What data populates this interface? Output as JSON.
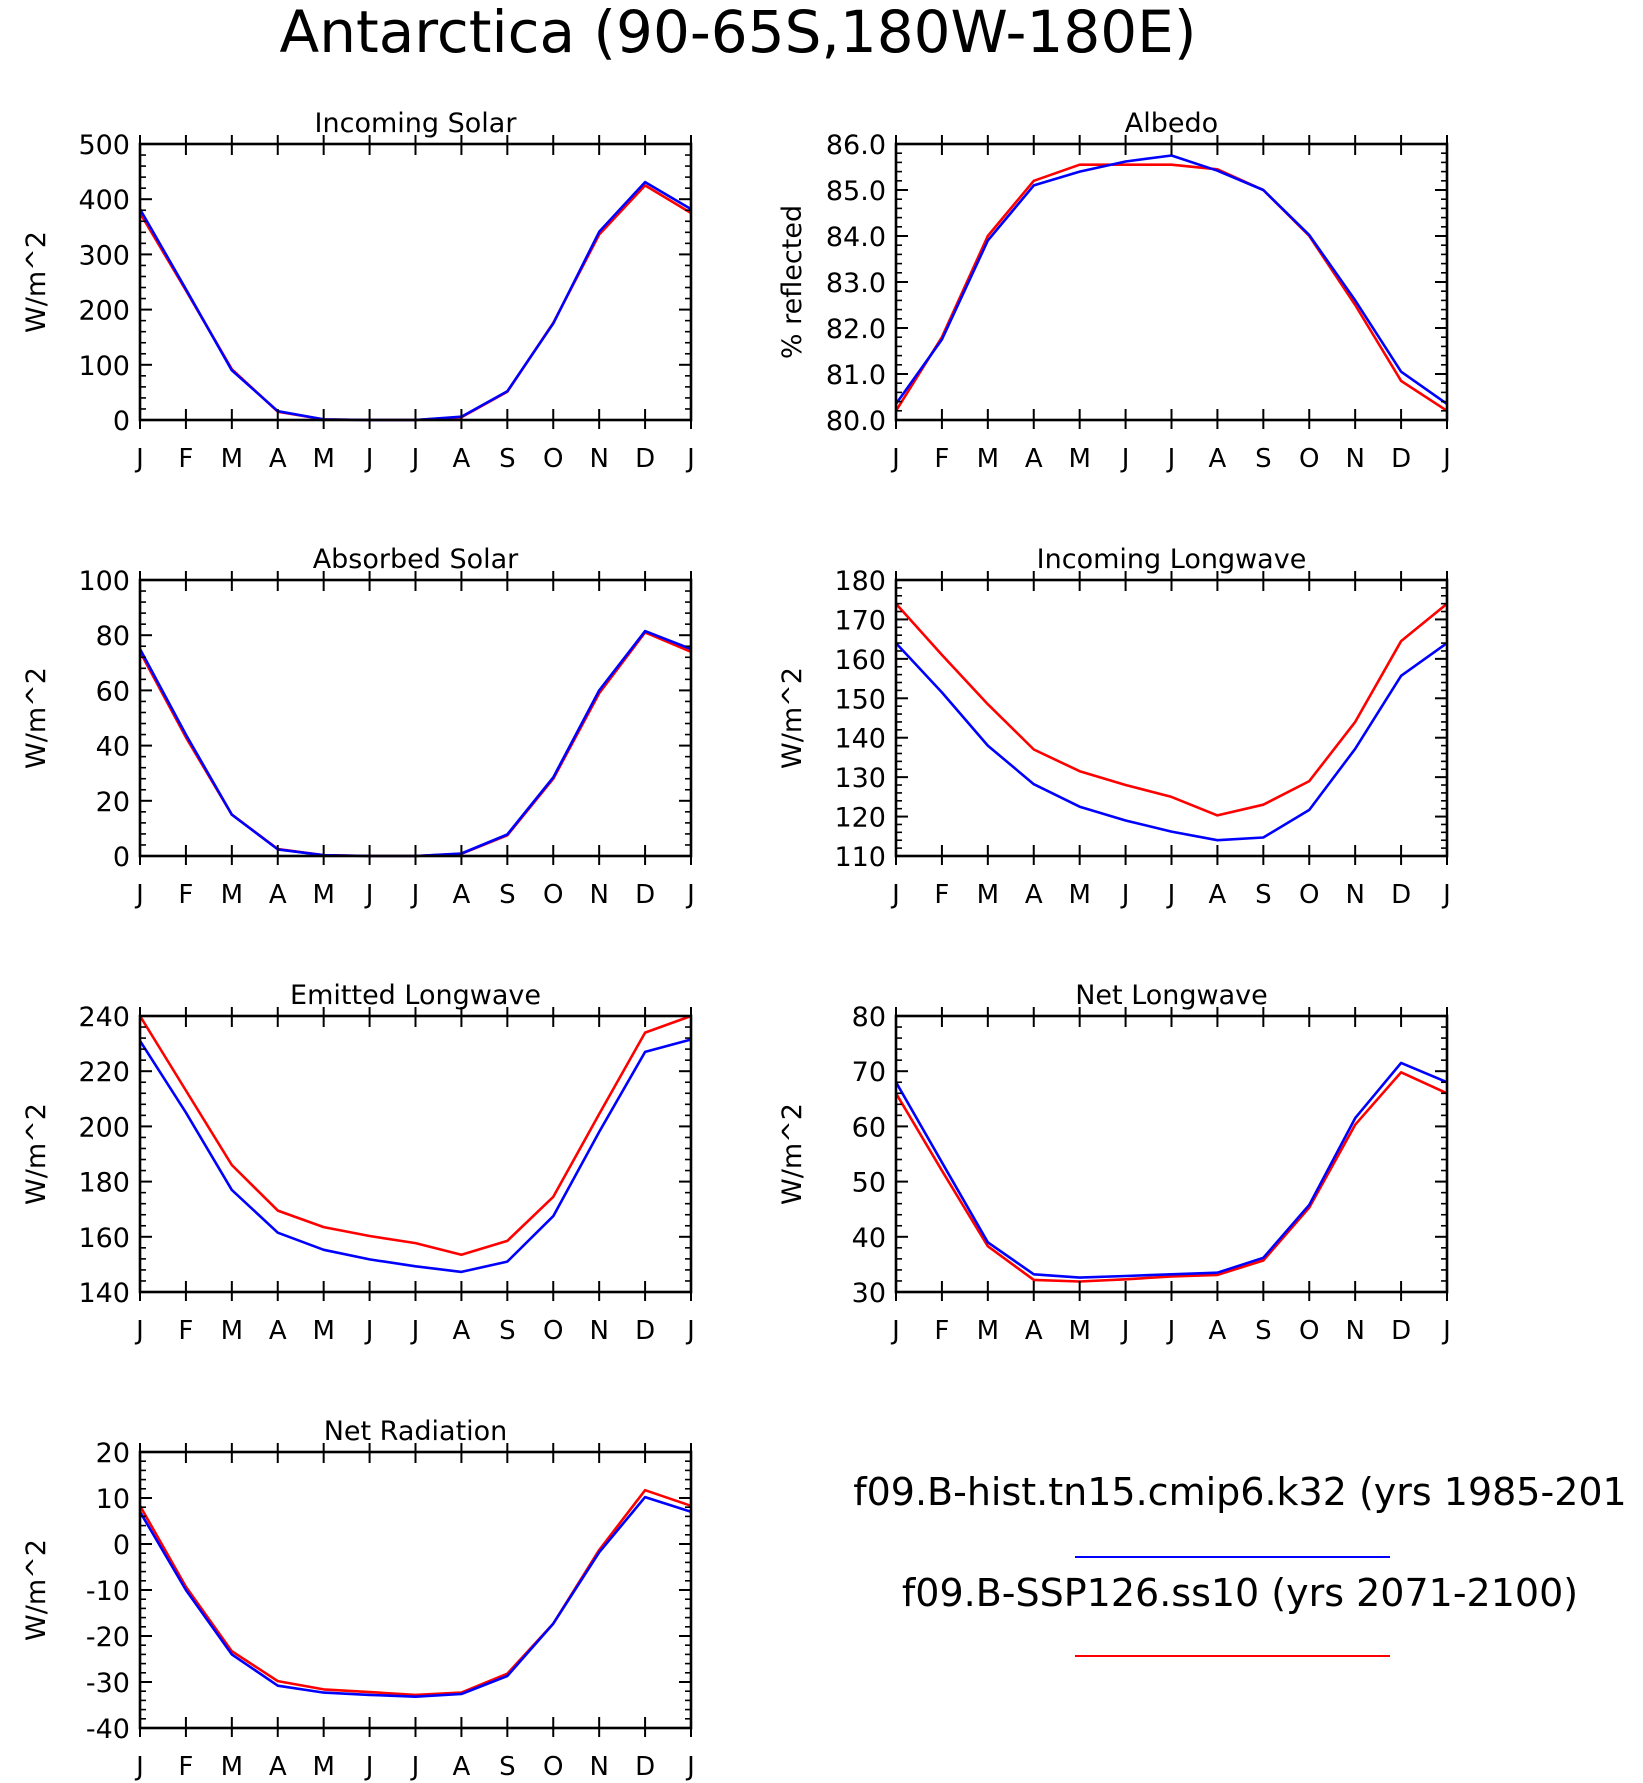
{
  "title": "Antarctica (90-65S,180W-180E)",
  "colors": {
    "case1": "#0000ff",
    "case2": "#ff0000",
    "axis": "#000000"
  },
  "legend": {
    "entries": [
      {
        "label": "f09.B-hist.tn15.cmip6.k32 (yrs 1985-201",
        "color": "#0000ff"
      },
      {
        "label": "f09.B-SSP126.ss10 (yrs 2071-2100)",
        "color": "#ff0000"
      }
    ]
  },
  "chart_data": [
    {
      "type": "line",
      "title": "Incoming Solar",
      "ylabel": "W/m^2",
      "categories": [
        "J",
        "F",
        "M",
        "A",
        "M",
        "J",
        "J",
        "A",
        "S",
        "O",
        "N",
        "D",
        "J"
      ],
      "ylim": [
        0,
        500
      ],
      "yticks": [
        0,
        100,
        200,
        300,
        400,
        500
      ],
      "ytick_labels": [
        "0",
        "100",
        "200",
        "300",
        "400",
        "500"
      ],
      "series": [
        {
          "color": "#ff0000",
          "values": [
            375,
            235,
            92,
            15,
            1,
            0,
            0,
            5,
            51,
            176,
            336,
            425,
            375
          ]
        },
        {
          "color": "#0000ff",
          "values": [
            382,
            237,
            90,
            16,
            1,
            0,
            0,
            6,
            52,
            175,
            341,
            431,
            382
          ]
        }
      ]
    },
    {
      "type": "line",
      "title": "Albedo",
      "ylabel": "% reflected",
      "categories": [
        "J",
        "F",
        "M",
        "A",
        "M",
        "J",
        "J",
        "A",
        "S",
        "O",
        "N",
        "D",
        "J"
      ],
      "ylim": [
        80,
        86
      ],
      "yticks": [
        80,
        81,
        82,
        83,
        84,
        85,
        86
      ],
      "ytick_labels": [
        "80.0",
        "81.0",
        "82.0",
        "83.0",
        "84.0",
        "85.0",
        "86.0"
      ],
      "series": [
        {
          "color": "#ff0000",
          "values": [
            80.2,
            81.8,
            84.0,
            85.2,
            85.55,
            85.55,
            85.55,
            85.45,
            85.0,
            84.0,
            82.5,
            80.85,
            80.2
          ]
        },
        {
          "color": "#0000ff",
          "values": [
            80.35,
            81.75,
            83.9,
            85.1,
            85.4,
            85.62,
            85.75,
            85.42,
            85.0,
            84.02,
            82.6,
            81.05,
            80.35
          ]
        }
      ]
    },
    {
      "type": "line",
      "title": "Absorbed Solar",
      "ylabel": "W/m^2",
      "categories": [
        "J",
        "F",
        "M",
        "A",
        "M",
        "J",
        "J",
        "A",
        "S",
        "O",
        "N",
        "D",
        "J"
      ],
      "ylim": [
        0,
        100
      ],
      "yticks": [
        0,
        20,
        40,
        60,
        80,
        100
      ],
      "ytick_labels": [
        "0",
        "20",
        "40",
        "60",
        "80",
        "100"
      ],
      "series": [
        {
          "color": "#ff0000",
          "values": [
            74,
            43,
            15,
            2.5,
            0.3,
            0,
            0,
            0.8,
            7.5,
            28,
            59,
            81,
            74
          ]
        },
        {
          "color": "#0000ff",
          "values": [
            75,
            44,
            15,
            2.4,
            0.3,
            0,
            0,
            0.9,
            7.8,
            28.5,
            60,
            81.5,
            75
          ]
        }
      ]
    },
    {
      "type": "line",
      "title": "Incoming Longwave",
      "ylabel": "W/m^2",
      "categories": [
        "J",
        "F",
        "M",
        "A",
        "M",
        "J",
        "J",
        "A",
        "S",
        "O",
        "N",
        "D",
        "J"
      ],
      "ylim": [
        110,
        180
      ],
      "yticks": [
        110,
        120,
        130,
        140,
        150,
        160,
        170,
        180
      ],
      "ytick_labels": [
        "110",
        "120",
        "130",
        "140",
        "150",
        "160",
        "170",
        "180"
      ],
      "series": [
        {
          "color": "#ff0000",
          "values": [
            174,
            161,
            148.5,
            137,
            131.5,
            128,
            125,
            120.3,
            123,
            129,
            144,
            164.5,
            174
          ]
        },
        {
          "color": "#0000ff",
          "values": [
            164,
            151.5,
            138,
            128.2,
            122.5,
            119,
            116.2,
            114,
            114.7,
            121.7,
            137.2,
            155.7,
            164
          ]
        }
      ]
    },
    {
      "type": "line",
      "title": "Emitted Longwave",
      "ylabel": "W/m^2",
      "categories": [
        "J",
        "F",
        "M",
        "A",
        "M",
        "J",
        "J",
        "A",
        "S",
        "O",
        "N",
        "D",
        "J"
      ],
      "ylim": [
        140,
        240
      ],
      "yticks": [
        140,
        160,
        180,
        200,
        220,
        240
      ],
      "ytick_labels": [
        "140",
        "160",
        "180",
        "200",
        "220",
        "240"
      ],
      "series": [
        {
          "color": "#ff0000",
          "values": [
            240,
            213,
            186,
            169.5,
            163.5,
            160.3,
            157.7,
            153.5,
            158.5,
            174.5,
            204.5,
            234,
            240
          ]
        },
        {
          "color": "#0000ff",
          "values": [
            231,
            205,
            177,
            161.5,
            155.3,
            151.8,
            149.3,
            147.3,
            151,
            167.5,
            198,
            227,
            231.5
          ]
        }
      ]
    },
    {
      "type": "line",
      "title": "Net Longwave",
      "ylabel": "W/m^2",
      "categories": [
        "J",
        "F",
        "M",
        "A",
        "M",
        "J",
        "J",
        "A",
        "S",
        "O",
        "N",
        "D",
        "J"
      ],
      "ylim": [
        30,
        80
      ],
      "yticks": [
        30,
        40,
        50,
        60,
        70,
        80
      ],
      "ytick_labels": [
        "30",
        "40",
        "50",
        "60",
        "70",
        "80"
      ],
      "series": [
        {
          "color": "#ff0000",
          "values": [
            66,
            52,
            38.3,
            32.2,
            31.9,
            32.3,
            32.8,
            33.1,
            35.7,
            45.3,
            60.3,
            69.8,
            66
          ]
        },
        {
          "color": "#0000ff",
          "values": [
            68,
            53.5,
            39,
            33.2,
            32.6,
            32.9,
            33.2,
            33.5,
            36.2,
            45.8,
            61.5,
            71.5,
            68
          ]
        }
      ]
    },
    {
      "type": "line",
      "title": "Net Radiation",
      "ylabel": "W/m^2",
      "categories": [
        "J",
        "F",
        "M",
        "A",
        "M",
        "J",
        "J",
        "A",
        "S",
        "O",
        "N",
        "D",
        "J"
      ],
      "ylim": [
        -40,
        20
      ],
      "yticks": [
        -40,
        -30,
        -20,
        -10,
        0,
        10,
        20
      ],
      "ytick_labels": [
        "-40",
        "-30",
        "-20",
        "-10",
        "0",
        "10",
        "20"
      ],
      "series": [
        {
          "color": "#ff0000",
          "values": [
            8.3,
            -9.3,
            -23.3,
            -29.8,
            -31.6,
            -32.2,
            -32.8,
            -32.3,
            -28.2,
            -17.3,
            -1.3,
            11.7,
            8.3
          ]
        },
        {
          "color": "#0000ff",
          "values": [
            7,
            -10,
            -24,
            -30.8,
            -32.3,
            -32.8,
            -33.2,
            -32.6,
            -28.7,
            -17.3,
            -1.8,
            10.2,
            7
          ]
        }
      ]
    }
  ]
}
